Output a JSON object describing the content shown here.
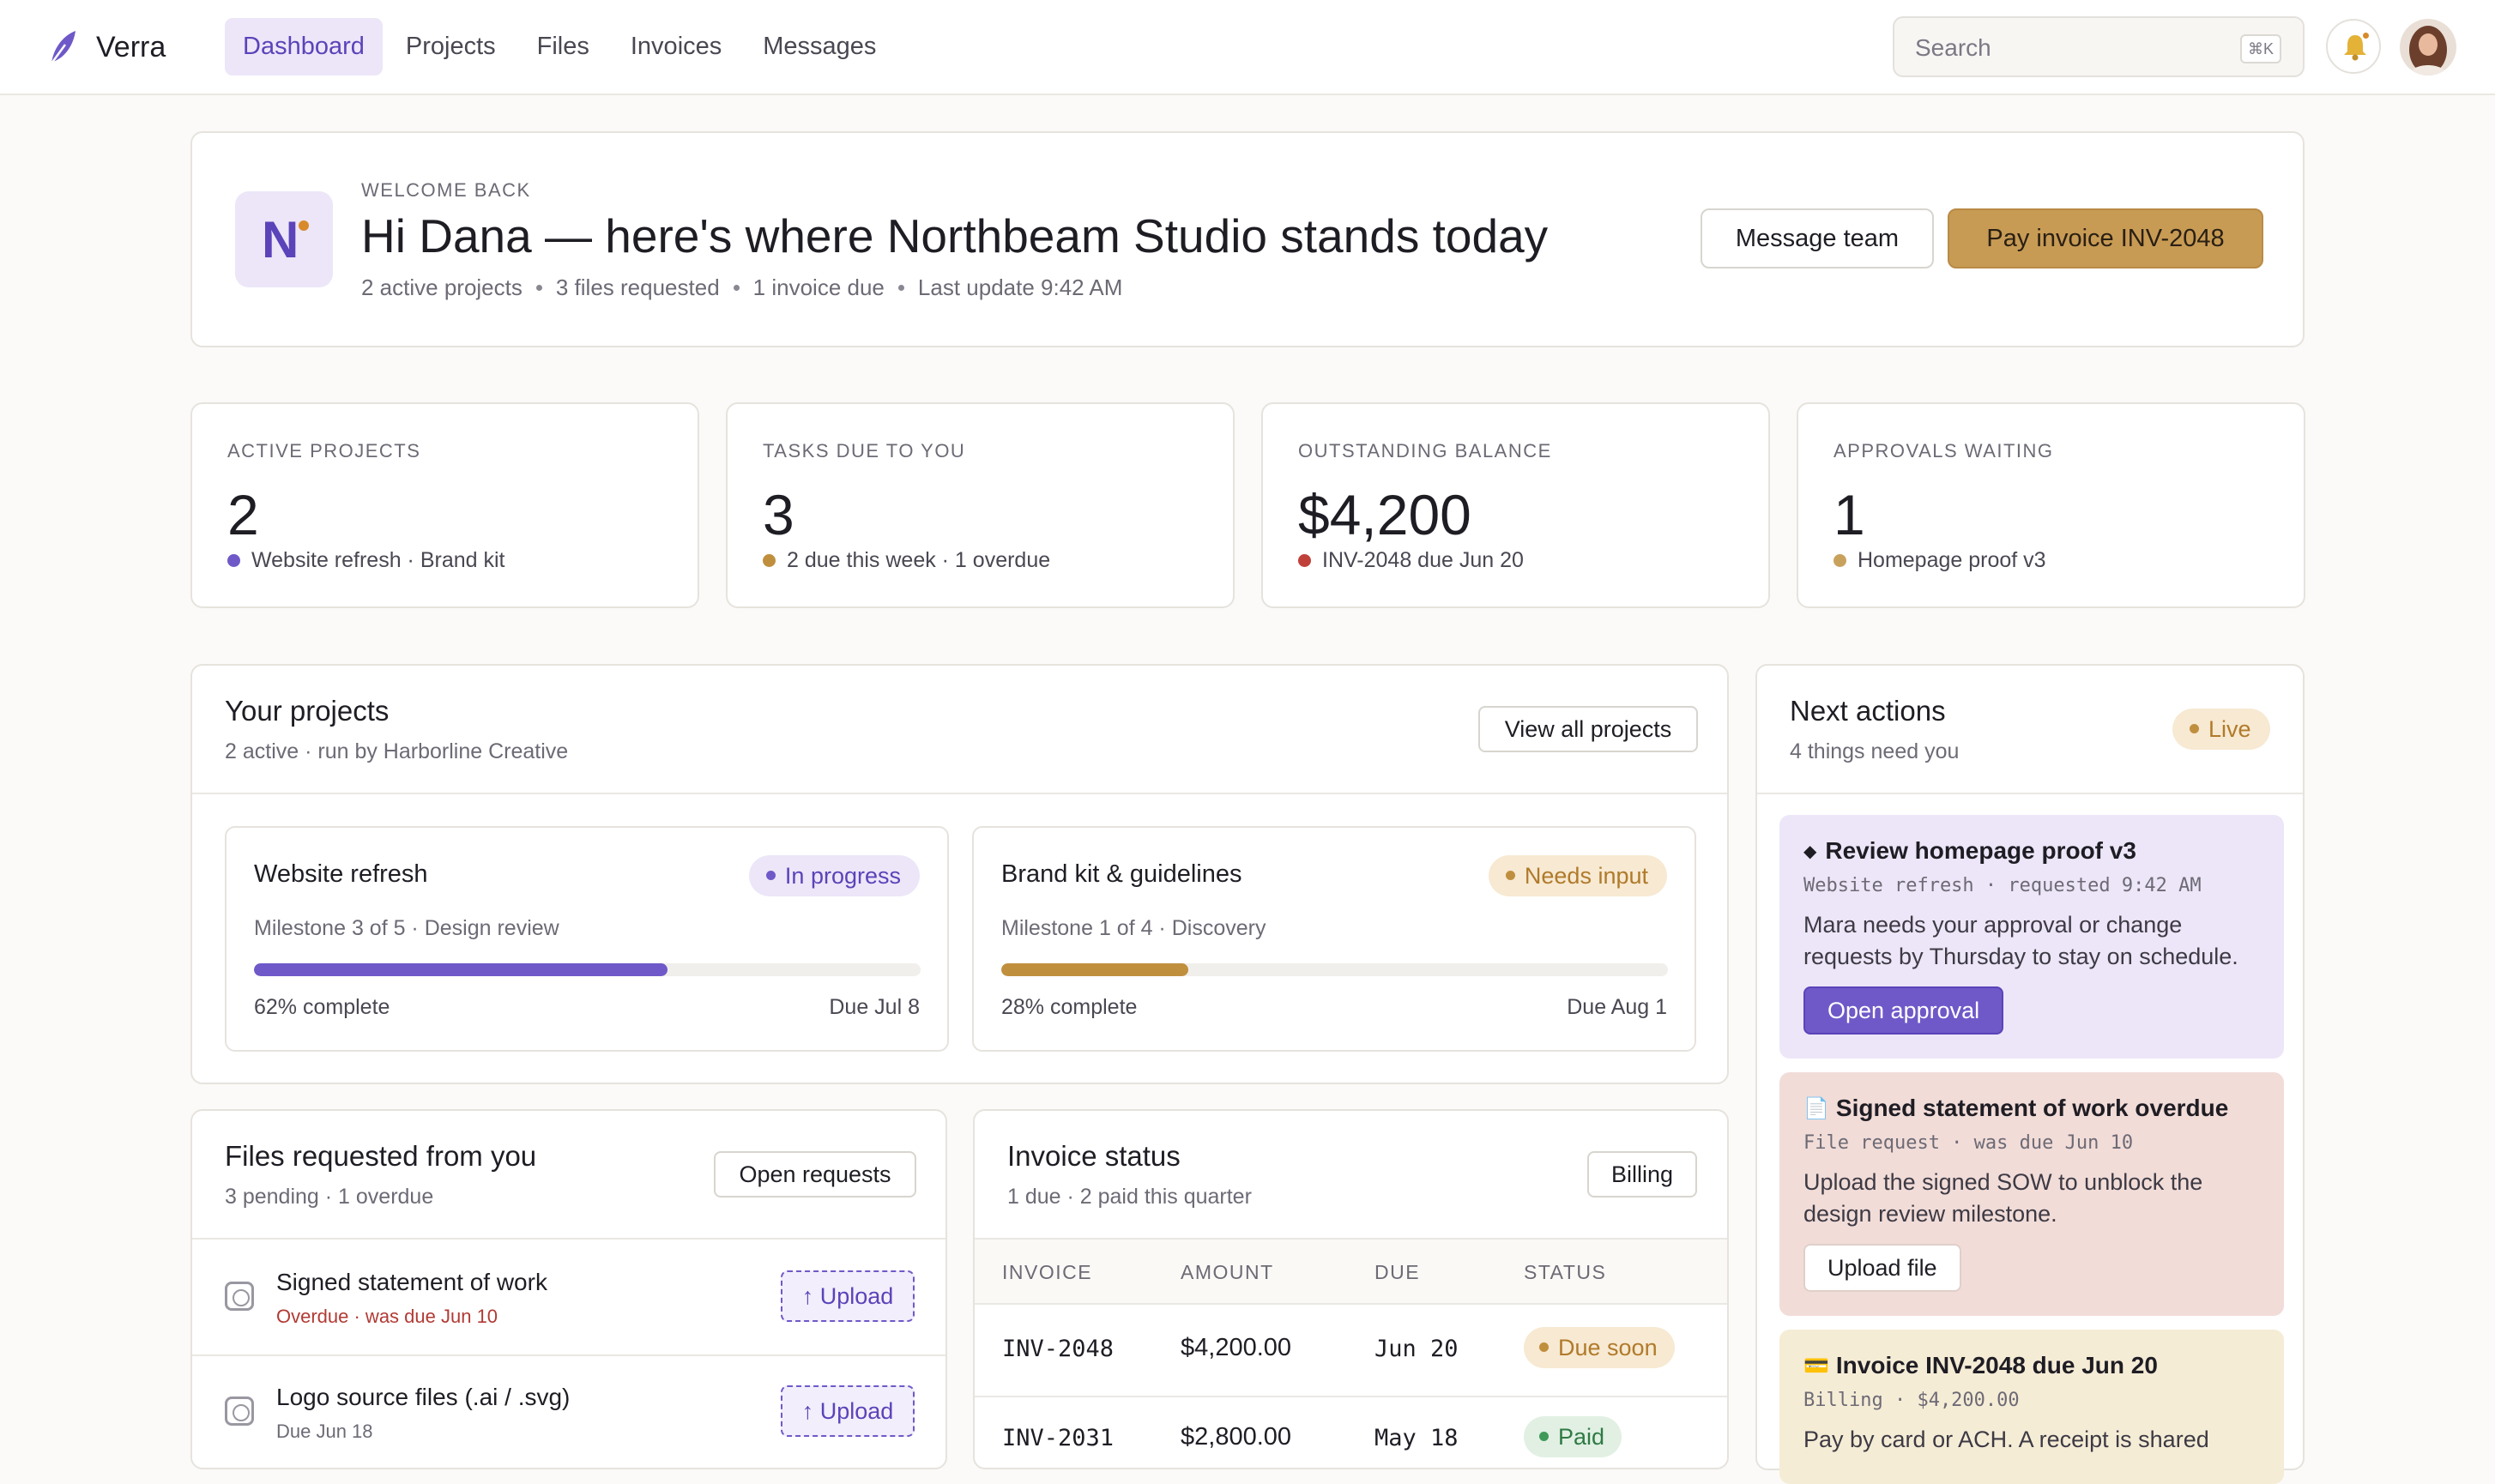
{
  "colors": {
    "accent": "#5b43b9",
    "gold": "#c89b55",
    "danger": "#b23a34",
    "accent_soft": "#ece6f8",
    "gold_soft": "#f7e9d2",
    "rose_soft": "#f1dcd8",
    "cream_soft": "#f5ecd6"
  },
  "nav": {
    "brand": "Verra",
    "tabs": [
      {
        "label": "Dashboard",
        "active": true
      },
      {
        "label": "Projects"
      },
      {
        "label": "Files"
      },
      {
        "label": "Invoices"
      },
      {
        "label": "Messages"
      }
    ],
    "search_placeholder": "Search",
    "search_shortcut": "⌘K",
    "icons": {
      "bell": "bell-icon",
      "avatar": "user-avatar"
    }
  },
  "welcome": {
    "logo_letter": "N",
    "eyebrow": "WELCOME BACK",
    "title": "Hi Dana — here's where Northbeam Studio stands today",
    "meta": [
      "2 active projects",
      "3 files requested",
      "1 invoice due",
      "Last update 9:42 AM"
    ],
    "message_button": "Message team",
    "pay_button": "Pay invoice INV-2048"
  },
  "stats": [
    {
      "label": "ACTIVE PROJECTS",
      "value": "2",
      "sub": "Website refresh · Brand kit",
      "dot": "#6f59c8"
    },
    {
      "label": "TASKS DUE TO YOU",
      "value": "3",
      "sub": "2 due this week · 1 overdue",
      "dot": "#c08f3e"
    },
    {
      "label": "OUTSTANDING BALANCE",
      "value": "$4,200",
      "sub": "INV-2048 due Jun 20",
      "dot": "#c0413a"
    },
    {
      "label": "APPROVALS WAITING",
      "value": "1",
      "sub": "Homepage proof v3",
      "dot": "#c8a25d"
    }
  ],
  "projects": {
    "title": "Your projects",
    "subtitle": "2 active · run by Harborline Creative",
    "view_all": "View all projects",
    "items": [
      {
        "name": "Website refresh",
        "status": "In progress",
        "milestone": "Milestone 3 of 5 · Design review",
        "progress": 0.62,
        "progress_label": "62% complete",
        "due": "Due Jul 8"
      },
      {
        "name": "Brand kit & guidelines",
        "status": "Needs input",
        "milestone": "Milestone 1 of 4 · Discovery",
        "progress": 0.28,
        "progress_label": "28% complete",
        "due": "Due Aug 1"
      }
    ]
  },
  "files": {
    "title": "Files requested from you",
    "subtitle": "3 pending · 1 overdue",
    "open_requests": "Open requests",
    "items": [
      {
        "name": "Signed statement of work",
        "meta": "Overdue · was due Jun 10",
        "overdue": true,
        "action": "↑ Upload"
      },
      {
        "name": "Logo source files (.ai / .svg)",
        "meta": "Due Jun 18",
        "overdue": false,
        "action": "↑ Upload"
      }
    ]
  },
  "invoices": {
    "title": "Invoice status",
    "subtitle": "1 due · 2 paid this quarter",
    "billing": "Billing",
    "columns": [
      "INVOICE",
      "AMOUNT",
      "DUE",
      "STATUS"
    ],
    "rows": [
      {
        "invoice": "INV-2048",
        "amount": "$4,200.00",
        "due": "Jun 20",
        "status": "Due soon"
      },
      {
        "invoice": "INV-2031",
        "amount": "$2,800.00",
        "due": "May 18",
        "status": "Paid"
      }
    ]
  },
  "next_actions": {
    "title": "Next actions",
    "subtitle": "4 things need you",
    "live": "Live",
    "items": [
      {
        "icon": "diamond-icon",
        "glyph": "◆",
        "title": "Review homepage proof v3",
        "meta": "Website refresh · requested 9:42 AM",
        "body": "Mara needs your approval or change requests by Thursday to stay on schedule.",
        "button": "Open approval"
      },
      {
        "icon": "document-icon",
        "glyph": "📄",
        "title": "Signed statement of work overdue",
        "meta": "File request · was due Jun 10",
        "body": "Upload the signed SOW to unblock the design review milestone.",
        "button": "Upload file"
      },
      {
        "icon": "credit-card-icon",
        "glyph": "💳",
        "title": "Invoice INV-2048 due Jun 20",
        "meta": "Billing · $4,200.00",
        "body": "Pay by card or ACH. A receipt is shared"
      }
    ]
  }
}
